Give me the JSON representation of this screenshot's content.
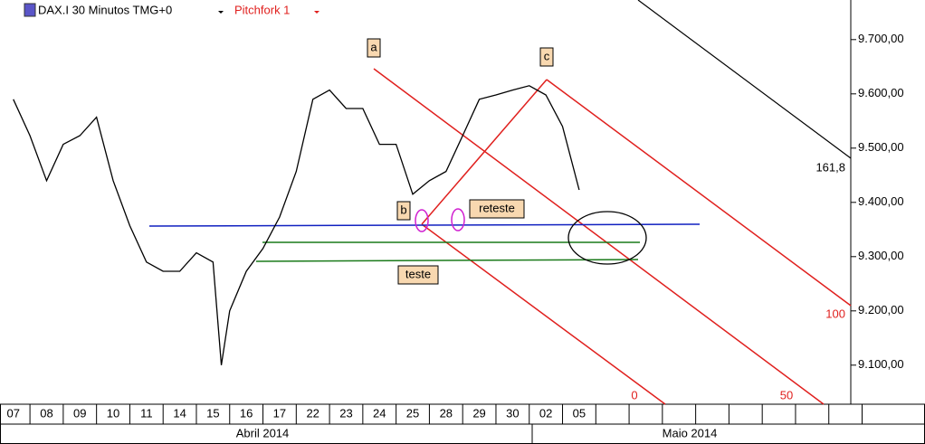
{
  "header": {
    "title": "DAX.I 30 Minutos TMG+0",
    "study": "Pitchfork 1"
  },
  "chart_data": {
    "type": "line",
    "categories": [
      "07",
      "08",
      "09",
      "10",
      "11",
      "14",
      "15",
      "16",
      "17",
      "22",
      "23",
      "24",
      "25",
      "28",
      "29",
      "30",
      "02",
      "05",
      null,
      null,
      null,
      null,
      null,
      null,
      null,
      null
    ],
    "months": [
      "Abril 2014",
      "Maio 2014"
    ],
    "x": [
      0,
      0.5,
      1,
      1.5,
      2,
      2.5,
      3,
      3.5,
      4,
      4.5,
      5,
      5.5,
      6,
      6.25,
      6.5,
      7,
      7.5,
      8,
      8.5,
      9,
      9.5,
      10,
      10.5,
      11,
      11.5,
      12,
      12.5,
      13,
      13.5,
      14,
      14.5,
      15,
      15.5,
      16,
      16.5,
      17
    ],
    "series": [
      {
        "color": "#000000",
        "values": [
          9590,
          9523,
          9440,
          9507,
          9523,
          9557,
          9440,
          9357,
          9290,
          9273,
          9273,
          9307,
          9290,
          9100,
          9200,
          9273,
          9315,
          9373,
          9457,
          9590,
          9607,
          9573,
          9573,
          9507,
          9507,
          9415,
          9440,
          9457,
          9523,
          9590,
          9598,
          9607,
          9615,
          9598,
          9540,
          9423
        ]
      }
    ],
    "xlim": [
      -0.4,
      25.16
    ],
    "ylim": [
      9028,
      9773
    ],
    "yticks": [
      {
        "value": 9100,
        "label": "9.100,00"
      },
      {
        "value": 9200,
        "label": "9.200,00"
      },
      {
        "value": 9300,
        "label": "9.300,00"
      },
      {
        "value": 9400,
        "label": "9.400,00"
      },
      {
        "value": 9500,
        "label": "9.500,00"
      },
      {
        "value": 9600,
        "label": "9.600,00"
      },
      {
        "value": 9700,
        "label": "9.700,00"
      }
    ],
    "annotations": [
      "a",
      "b",
      "c",
      "reteste",
      "teste",
      "161,8",
      "100",
      "0",
      "50"
    ]
  }
}
